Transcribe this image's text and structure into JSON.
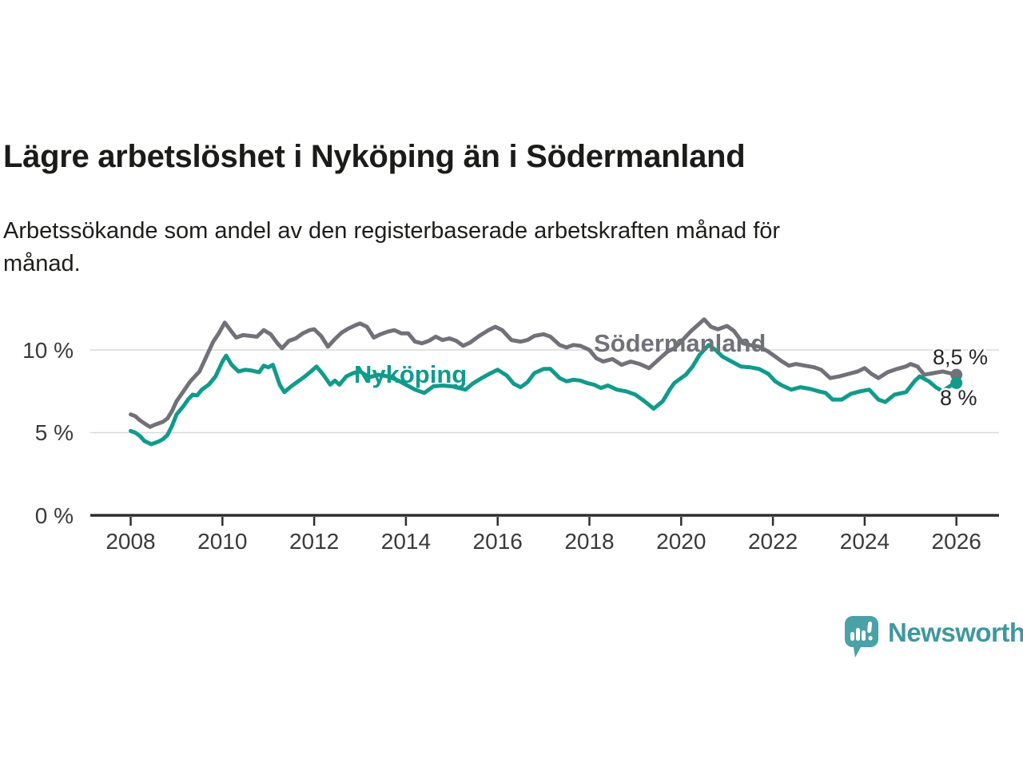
{
  "header": {
    "title": "Lägre arbetslöshet i Nyköping än i Södermanland",
    "subtitle_line1": "Arbetssökande som andel av den registerbaserade arbetskraften månad för",
    "subtitle_line2": "månad."
  },
  "chart_data": {
    "type": "line",
    "unit": "%",
    "grid": "horizontal-only",
    "x_range": [
      2008,
      2026
    ],
    "y_range": [
      0,
      12.5
    ],
    "y_axis": {
      "ticks": [
        {
          "value": 0,
          "label": "0 %"
        },
        {
          "value": 5,
          "label": "5 %"
        },
        {
          "value": 10,
          "label": "10 %"
        }
      ]
    },
    "x_axis": {
      "ticks": [
        {
          "year": 2008,
          "label": "2008"
        },
        {
          "year": 2010,
          "label": "2010"
        },
        {
          "year": 2012,
          "label": "2012"
        },
        {
          "year": 2014,
          "label": "2014"
        },
        {
          "year": 2016,
          "label": "2016"
        },
        {
          "year": 2018,
          "label": "2018"
        },
        {
          "year": 2020,
          "label": "2020"
        },
        {
          "year": 2022,
          "label": "2022"
        },
        {
          "year": 2024,
          "label": "2024"
        },
        {
          "year": 2026,
          "label": "2026"
        }
      ]
    },
    "series": [
      {
        "id": "sodermanland",
        "name": "Södermanland",
        "color": "#717178",
        "end_label": "8,5 %",
        "end_value": 8.5,
        "points": [
          [
            2008.0,
            6.1
          ],
          [
            2008.1,
            6.0
          ],
          [
            2008.2,
            5.75
          ],
          [
            2008.33,
            5.5
          ],
          [
            2008.42,
            5.35
          ],
          [
            2008.55,
            5.5
          ],
          [
            2008.7,
            5.65
          ],
          [
            2008.8,
            5.85
          ],
          [
            2008.9,
            6.3
          ],
          [
            2009.0,
            6.9
          ],
          [
            2009.15,
            7.5
          ],
          [
            2009.3,
            8.1
          ],
          [
            2009.5,
            8.7
          ],
          [
            2009.65,
            9.6
          ],
          [
            2009.8,
            10.5
          ],
          [
            2009.92,
            11.0
          ],
          [
            2010.05,
            11.65
          ],
          [
            2010.2,
            11.1
          ],
          [
            2010.3,
            10.75
          ],
          [
            2010.45,
            10.9
          ],
          [
            2010.6,
            10.85
          ],
          [
            2010.75,
            10.8
          ],
          [
            2010.9,
            11.2
          ],
          [
            2011.05,
            10.95
          ],
          [
            2011.2,
            10.4
          ],
          [
            2011.3,
            10.1
          ],
          [
            2011.45,
            10.55
          ],
          [
            2011.6,
            10.7
          ],
          [
            2011.75,
            11.0
          ],
          [
            2011.9,
            11.2
          ],
          [
            2012.0,
            11.25
          ],
          [
            2012.15,
            10.85
          ],
          [
            2012.3,
            10.2
          ],
          [
            2012.45,
            10.65
          ],
          [
            2012.6,
            11.05
          ],
          [
            2012.75,
            11.3
          ],
          [
            2012.9,
            11.5
          ],
          [
            2013.0,
            11.6
          ],
          [
            2013.15,
            11.4
          ],
          [
            2013.3,
            10.75
          ],
          [
            2013.45,
            10.95
          ],
          [
            2013.6,
            11.1
          ],
          [
            2013.75,
            11.2
          ],
          [
            2013.9,
            11.0
          ],
          [
            2014.05,
            11.0
          ],
          [
            2014.2,
            10.5
          ],
          [
            2014.35,
            10.4
          ],
          [
            2014.5,
            10.55
          ],
          [
            2014.65,
            10.8
          ],
          [
            2014.8,
            10.6
          ],
          [
            2014.95,
            10.7
          ],
          [
            2015.1,
            10.55
          ],
          [
            2015.25,
            10.25
          ],
          [
            2015.4,
            10.45
          ],
          [
            2015.6,
            10.85
          ],
          [
            2015.8,
            11.2
          ],
          [
            2015.95,
            11.4
          ],
          [
            2016.1,
            11.2
          ],
          [
            2016.3,
            10.6
          ],
          [
            2016.5,
            10.5
          ],
          [
            2016.65,
            10.6
          ],
          [
            2016.8,
            10.85
          ],
          [
            2017.0,
            10.95
          ],
          [
            2017.15,
            10.8
          ],
          [
            2017.35,
            10.3
          ],
          [
            2017.5,
            10.15
          ],
          [
            2017.65,
            10.3
          ],
          [
            2017.8,
            10.25
          ],
          [
            2018.0,
            10.0
          ],
          [
            2018.15,
            9.5
          ],
          [
            2018.3,
            9.3
          ],
          [
            2018.5,
            9.45
          ],
          [
            2018.7,
            9.1
          ],
          [
            2018.9,
            9.3
          ],
          [
            2019.1,
            9.15
          ],
          [
            2019.3,
            8.9
          ],
          [
            2019.5,
            9.4
          ],
          [
            2019.7,
            9.9
          ],
          [
            2019.85,
            10.1
          ],
          [
            2020.0,
            10.5
          ],
          [
            2020.2,
            11.1
          ],
          [
            2020.4,
            11.6
          ],
          [
            2020.5,
            11.85
          ],
          [
            2020.65,
            11.4
          ],
          [
            2020.8,
            11.25
          ],
          [
            2021.0,
            11.45
          ],
          [
            2021.15,
            11.15
          ],
          [
            2021.35,
            10.4
          ],
          [
            2021.5,
            10.3
          ],
          [
            2021.7,
            10.2
          ],
          [
            2021.9,
            9.9
          ],
          [
            2022.05,
            9.6
          ],
          [
            2022.2,
            9.3
          ],
          [
            2022.35,
            9.05
          ],
          [
            2022.5,
            9.15
          ],
          [
            2022.7,
            9.05
          ],
          [
            2022.9,
            8.95
          ],
          [
            2023.05,
            8.8
          ],
          [
            2023.25,
            8.3
          ],
          [
            2023.45,
            8.4
          ],
          [
            2023.65,
            8.55
          ],
          [
            2023.85,
            8.7
          ],
          [
            2024.0,
            8.9
          ],
          [
            2024.15,
            8.55
          ],
          [
            2024.3,
            8.3
          ],
          [
            2024.5,
            8.65
          ],
          [
            2024.7,
            8.85
          ],
          [
            2024.9,
            9.0
          ],
          [
            2025.0,
            9.15
          ],
          [
            2025.15,
            9.0
          ],
          [
            2025.3,
            8.5
          ],
          [
            2025.5,
            8.6
          ],
          [
            2025.7,
            8.7
          ],
          [
            2025.85,
            8.6
          ],
          [
            2026.0,
            8.5
          ]
        ]
      },
      {
        "id": "nykoping",
        "name": "Nyköping",
        "color": "#109b8b",
        "end_label": "8 %",
        "end_value": 8.0,
        "points": [
          [
            2008.0,
            5.1
          ],
          [
            2008.1,
            5.0
          ],
          [
            2008.2,
            4.8
          ],
          [
            2008.3,
            4.5
          ],
          [
            2008.45,
            4.3
          ],
          [
            2008.6,
            4.45
          ],
          [
            2008.7,
            4.6
          ],
          [
            2008.8,
            4.85
          ],
          [
            2008.9,
            5.4
          ],
          [
            2009.0,
            6.1
          ],
          [
            2009.15,
            6.6
          ],
          [
            2009.25,
            7.0
          ],
          [
            2009.35,
            7.3
          ],
          [
            2009.45,
            7.25
          ],
          [
            2009.55,
            7.6
          ],
          [
            2009.7,
            7.9
          ],
          [
            2009.85,
            8.4
          ],
          [
            2010.0,
            9.3
          ],
          [
            2010.08,
            9.65
          ],
          [
            2010.2,
            9.1
          ],
          [
            2010.35,
            8.7
          ],
          [
            2010.5,
            8.8
          ],
          [
            2010.65,
            8.75
          ],
          [
            2010.8,
            8.65
          ],
          [
            2010.9,
            9.05
          ],
          [
            2011.0,
            8.95
          ],
          [
            2011.1,
            9.1
          ],
          [
            2011.25,
            7.9
          ],
          [
            2011.35,
            7.45
          ],
          [
            2011.5,
            7.8
          ],
          [
            2011.65,
            8.1
          ],
          [
            2011.8,
            8.4
          ],
          [
            2011.95,
            8.75
          ],
          [
            2012.05,
            9.0
          ],
          [
            2012.2,
            8.5
          ],
          [
            2012.35,
            7.9
          ],
          [
            2012.45,
            8.15
          ],
          [
            2012.55,
            7.9
          ],
          [
            2012.7,
            8.4
          ],
          [
            2012.85,
            8.6
          ],
          [
            2013.0,
            8.7
          ],
          [
            2013.2,
            8.35
          ],
          [
            2013.4,
            8.5
          ],
          [
            2013.6,
            8.4
          ],
          [
            2013.8,
            8.2
          ],
          [
            2014.0,
            7.9
          ],
          [
            2014.2,
            7.6
          ],
          [
            2014.4,
            7.4
          ],
          [
            2014.6,
            7.8
          ],
          [
            2014.8,
            7.85
          ],
          [
            2015.0,
            7.8
          ],
          [
            2015.15,
            7.7
          ],
          [
            2015.3,
            7.6
          ],
          [
            2015.45,
            7.95
          ],
          [
            2015.65,
            8.3
          ],
          [
            2015.85,
            8.6
          ],
          [
            2016.0,
            8.8
          ],
          [
            2016.2,
            8.45
          ],
          [
            2016.35,
            7.95
          ],
          [
            2016.5,
            7.75
          ],
          [
            2016.65,
            8.05
          ],
          [
            2016.8,
            8.6
          ],
          [
            2017.0,
            8.85
          ],
          [
            2017.15,
            8.85
          ],
          [
            2017.35,
            8.3
          ],
          [
            2017.5,
            8.1
          ],
          [
            2017.65,
            8.2
          ],
          [
            2017.8,
            8.15
          ],
          [
            2017.95,
            8.0
          ],
          [
            2018.1,
            7.9
          ],
          [
            2018.25,
            7.7
          ],
          [
            2018.4,
            7.85
          ],
          [
            2018.6,
            7.6
          ],
          [
            2018.8,
            7.5
          ],
          [
            2019.0,
            7.3
          ],
          [
            2019.2,
            6.9
          ],
          [
            2019.4,
            6.45
          ],
          [
            2019.6,
            6.9
          ],
          [
            2019.75,
            7.6
          ],
          [
            2019.85,
            8.0
          ],
          [
            2020.0,
            8.3
          ],
          [
            2020.1,
            8.5
          ],
          [
            2020.25,
            9.0
          ],
          [
            2020.4,
            9.7
          ],
          [
            2020.6,
            10.3
          ],
          [
            2020.75,
            10.0
          ],
          [
            2020.9,
            9.6
          ],
          [
            2021.1,
            9.3
          ],
          [
            2021.3,
            9.0
          ],
          [
            2021.5,
            8.95
          ],
          [
            2021.7,
            8.85
          ],
          [
            2021.9,
            8.55
          ],
          [
            2022.05,
            8.1
          ],
          [
            2022.2,
            7.85
          ],
          [
            2022.4,
            7.6
          ],
          [
            2022.6,
            7.75
          ],
          [
            2022.8,
            7.65
          ],
          [
            2023.0,
            7.5
          ],
          [
            2023.15,
            7.4
          ],
          [
            2023.3,
            7.0
          ],
          [
            2023.5,
            7.0
          ],
          [
            2023.7,
            7.35
          ],
          [
            2023.9,
            7.5
          ],
          [
            2024.1,
            7.6
          ],
          [
            2024.3,
            7.0
          ],
          [
            2024.45,
            6.85
          ],
          [
            2024.65,
            7.3
          ],
          [
            2024.9,
            7.45
          ],
          [
            2025.1,
            8.15
          ],
          [
            2025.2,
            8.4
          ],
          [
            2025.4,
            8.1
          ],
          [
            2025.55,
            7.75
          ],
          [
            2025.7,
            7.5
          ],
          [
            2025.85,
            7.8
          ],
          [
            2026.0,
            8.0
          ]
        ]
      }
    ]
  },
  "footer": {
    "brand": "Newsworthy",
    "brand_text_color": "#3f989b",
    "logo_bubble_color": "#4aa1a6"
  }
}
